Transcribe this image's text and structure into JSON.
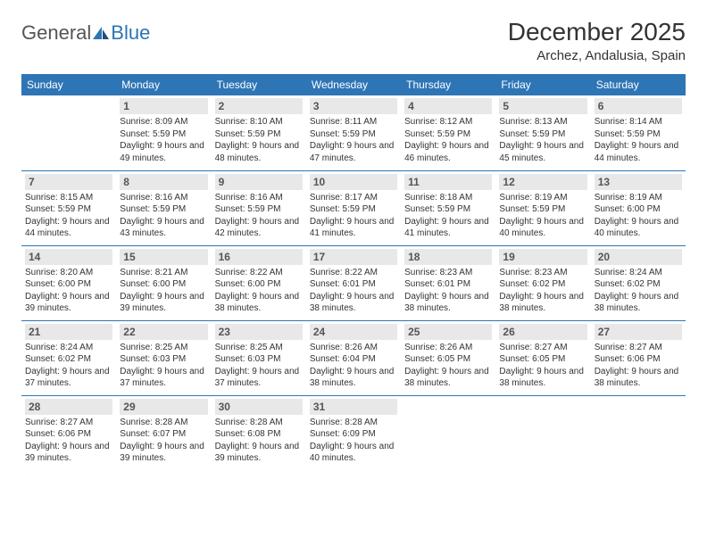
{
  "logo": {
    "text1": "General",
    "text2": "Blue"
  },
  "title": "December 2025",
  "location": "Archez, Andalusia, Spain",
  "weekdays": [
    "Sunday",
    "Monday",
    "Tuesday",
    "Wednesday",
    "Thursday",
    "Friday",
    "Saturday"
  ],
  "colors": {
    "header_bg": "#2e75b6",
    "header_text": "#ffffff",
    "daynum_bg": "#e8e8e8",
    "border": "#2e75b6",
    "text": "#333333",
    "logo_gray": "#555555",
    "logo_blue": "#2e75b6"
  },
  "typography": {
    "month_title_size": 28,
    "location_size": 15,
    "weekday_size": 12,
    "daynum_size": 12,
    "cell_size": 10
  },
  "layout": {
    "cols": 7,
    "rows": 5
  },
  "weeks": [
    [
      {
        "n": "",
        "sr": "",
        "ss": "",
        "dl": ""
      },
      {
        "n": "1",
        "sr": "8:09 AM",
        "ss": "5:59 PM",
        "dl": "9 hours and 49 minutes."
      },
      {
        "n": "2",
        "sr": "8:10 AM",
        "ss": "5:59 PM",
        "dl": "9 hours and 48 minutes."
      },
      {
        "n": "3",
        "sr": "8:11 AM",
        "ss": "5:59 PM",
        "dl": "9 hours and 47 minutes."
      },
      {
        "n": "4",
        "sr": "8:12 AM",
        "ss": "5:59 PM",
        "dl": "9 hours and 46 minutes."
      },
      {
        "n": "5",
        "sr": "8:13 AM",
        "ss": "5:59 PM",
        "dl": "9 hours and 45 minutes."
      },
      {
        "n": "6",
        "sr": "8:14 AM",
        "ss": "5:59 PM",
        "dl": "9 hours and 44 minutes."
      }
    ],
    [
      {
        "n": "7",
        "sr": "8:15 AM",
        "ss": "5:59 PM",
        "dl": "9 hours and 44 minutes."
      },
      {
        "n": "8",
        "sr": "8:16 AM",
        "ss": "5:59 PM",
        "dl": "9 hours and 43 minutes."
      },
      {
        "n": "9",
        "sr": "8:16 AM",
        "ss": "5:59 PM",
        "dl": "9 hours and 42 minutes."
      },
      {
        "n": "10",
        "sr": "8:17 AM",
        "ss": "5:59 PM",
        "dl": "9 hours and 41 minutes."
      },
      {
        "n": "11",
        "sr": "8:18 AM",
        "ss": "5:59 PM",
        "dl": "9 hours and 41 minutes."
      },
      {
        "n": "12",
        "sr": "8:19 AM",
        "ss": "5:59 PM",
        "dl": "9 hours and 40 minutes."
      },
      {
        "n": "13",
        "sr": "8:19 AM",
        "ss": "6:00 PM",
        "dl": "9 hours and 40 minutes."
      }
    ],
    [
      {
        "n": "14",
        "sr": "8:20 AM",
        "ss": "6:00 PM",
        "dl": "9 hours and 39 minutes."
      },
      {
        "n": "15",
        "sr": "8:21 AM",
        "ss": "6:00 PM",
        "dl": "9 hours and 39 minutes."
      },
      {
        "n": "16",
        "sr": "8:22 AM",
        "ss": "6:00 PM",
        "dl": "9 hours and 38 minutes."
      },
      {
        "n": "17",
        "sr": "8:22 AM",
        "ss": "6:01 PM",
        "dl": "9 hours and 38 minutes."
      },
      {
        "n": "18",
        "sr": "8:23 AM",
        "ss": "6:01 PM",
        "dl": "9 hours and 38 minutes."
      },
      {
        "n": "19",
        "sr": "8:23 AM",
        "ss": "6:02 PM",
        "dl": "9 hours and 38 minutes."
      },
      {
        "n": "20",
        "sr": "8:24 AM",
        "ss": "6:02 PM",
        "dl": "9 hours and 38 minutes."
      }
    ],
    [
      {
        "n": "21",
        "sr": "8:24 AM",
        "ss": "6:02 PM",
        "dl": "9 hours and 37 minutes."
      },
      {
        "n": "22",
        "sr": "8:25 AM",
        "ss": "6:03 PM",
        "dl": "9 hours and 37 minutes."
      },
      {
        "n": "23",
        "sr": "8:25 AM",
        "ss": "6:03 PM",
        "dl": "9 hours and 37 minutes."
      },
      {
        "n": "24",
        "sr": "8:26 AM",
        "ss": "6:04 PM",
        "dl": "9 hours and 38 minutes."
      },
      {
        "n": "25",
        "sr": "8:26 AM",
        "ss": "6:05 PM",
        "dl": "9 hours and 38 minutes."
      },
      {
        "n": "26",
        "sr": "8:27 AM",
        "ss": "6:05 PM",
        "dl": "9 hours and 38 minutes."
      },
      {
        "n": "27",
        "sr": "8:27 AM",
        "ss": "6:06 PM",
        "dl": "9 hours and 38 minutes."
      }
    ],
    [
      {
        "n": "28",
        "sr": "8:27 AM",
        "ss": "6:06 PM",
        "dl": "9 hours and 39 minutes."
      },
      {
        "n": "29",
        "sr": "8:28 AM",
        "ss": "6:07 PM",
        "dl": "9 hours and 39 minutes."
      },
      {
        "n": "30",
        "sr": "8:28 AM",
        "ss": "6:08 PM",
        "dl": "9 hours and 39 minutes."
      },
      {
        "n": "31",
        "sr": "8:28 AM",
        "ss": "6:09 PM",
        "dl": "9 hours and 40 minutes."
      },
      {
        "n": "",
        "sr": "",
        "ss": "",
        "dl": ""
      },
      {
        "n": "",
        "sr": "",
        "ss": "",
        "dl": ""
      },
      {
        "n": "",
        "sr": "",
        "ss": "",
        "dl": ""
      }
    ]
  ],
  "labels": {
    "sunrise": "Sunrise:",
    "sunset": "Sunset:",
    "daylight": "Daylight:"
  }
}
